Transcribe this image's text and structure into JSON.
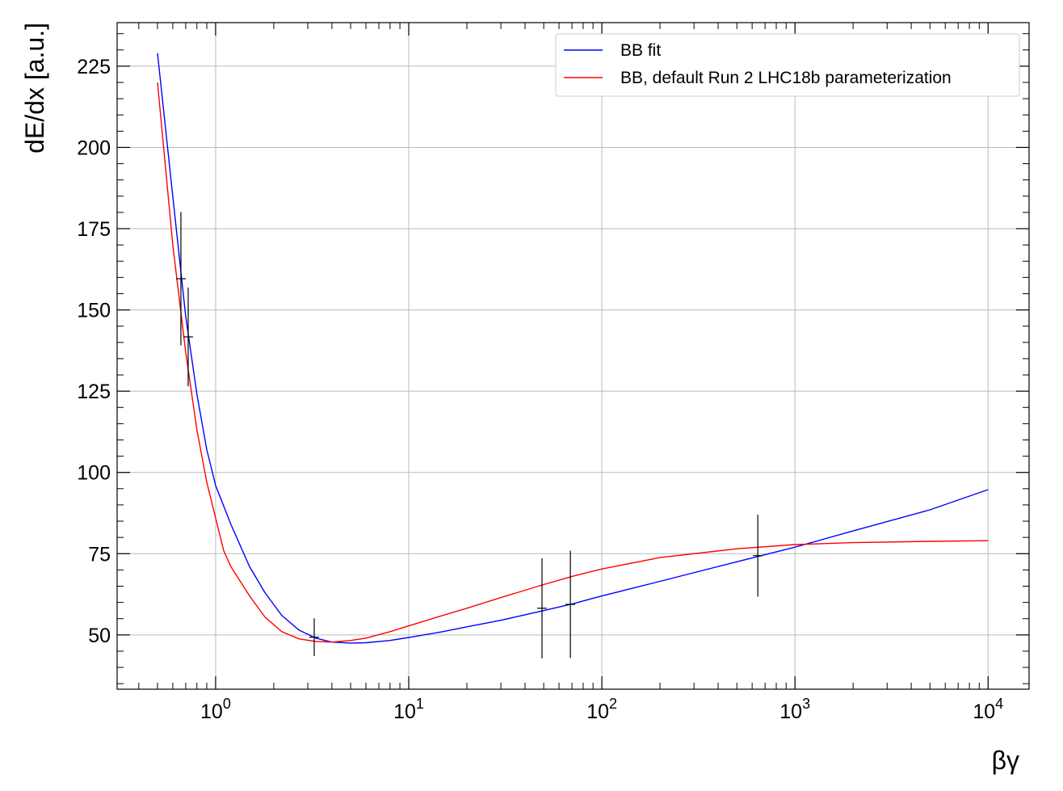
{
  "chart_data": {
    "type": "line",
    "x_label": "βγ",
    "y_label": "dE/dx [a.u.]",
    "xscale": "log",
    "grid": true,
    "legend": "upper right",
    "xlim": [
      0.309,
      16300
    ],
    "ylim": [
      33.3,
      238.4
    ],
    "xticks": [
      {
        "value": 1,
        "label": "10^0"
      },
      {
        "value": 10,
        "label": "10^1"
      },
      {
        "value": 100,
        "label": "10^2"
      },
      {
        "value": 1000,
        "label": "10^3"
      },
      {
        "value": 10000,
        "label": "10^4"
      }
    ],
    "xminorticks": [
      0.4,
      0.5,
      0.6,
      0.7,
      0.8,
      0.9,
      2,
      3,
      4,
      5,
      6,
      7,
      8,
      9,
      20,
      30,
      40,
      50,
      60,
      70,
      80,
      90,
      200,
      300,
      400,
      500,
      600,
      700,
      800,
      900,
      2000,
      3000,
      4000,
      5000,
      6000,
      7000,
      8000,
      9000
    ],
    "yticks": [
      50,
      75,
      100,
      125,
      150,
      175,
      200,
      225
    ],
    "yminorticks": [
      35,
      40,
      45,
      55,
      60,
      65,
      70,
      80,
      85,
      90,
      95,
      105,
      110,
      115,
      120,
      130,
      135,
      140,
      145,
      155,
      160,
      165,
      170,
      180,
      185,
      190,
      195,
      205,
      210,
      215,
      220,
      230,
      235
    ],
    "series": [
      {
        "name": "BB fit",
        "color": "#0000ff",
        "x": [
          0.5,
          0.6,
          0.7,
          0.8,
          0.9,
          1.0,
          1.2,
          1.5,
          1.8,
          2.2,
          2.7,
          3.3,
          4,
          5,
          6,
          8,
          10,
          15,
          20,
          30,
          50,
          70,
          100,
          200,
          500,
          1000,
          2000,
          5000,
          10000
        ],
        "values": [
          229,
          185,
          148,
          124,
          107,
          96,
          84,
          71,
          63,
          56,
          51.5,
          49,
          47.8,
          47.5,
          47.6,
          48.3,
          49.2,
          51,
          52.5,
          54.5,
          57.5,
          59.5,
          62,
          66.5,
          72.5,
          77,
          82,
          88.5,
          94.7
        ]
      },
      {
        "name": "BB, default Run 2 LHC18b parameterization",
        "color": "#ff0000",
        "x": [
          0.5,
          0.6,
          0.7,
          0.8,
          0.9,
          1.0,
          1.1,
          1.2,
          1.5,
          1.8,
          2.2,
          2.7,
          3.3,
          4,
          5,
          6,
          8,
          10,
          15,
          20,
          30,
          50,
          70,
          100,
          200,
          500,
          1000,
          2000,
          5000,
          10000
        ],
        "values": [
          220,
          170,
          137,
          113,
          97,
          86,
          76,
          71,
          62,
          55.5,
          51,
          48.8,
          48,
          47.8,
          48.3,
          49,
          51,
          52.8,
          56,
          58.2,
          61.5,
          65.5,
          68,
          70.3,
          73.8,
          76.5,
          77.8,
          78.4,
          78.8,
          79
        ]
      }
    ],
    "points": {
      "color": "#000000",
      "x": [
        0.661,
        0.721,
        3.24,
        49,
        68.7,
        642
      ],
      "values": [
        159.6,
        141.7,
        49.3,
        58.2,
        59.4,
        74.4
      ],
      "errors": [
        20.5,
        15.2,
        5.8,
        15.4,
        16.5,
        12.6
      ]
    }
  }
}
